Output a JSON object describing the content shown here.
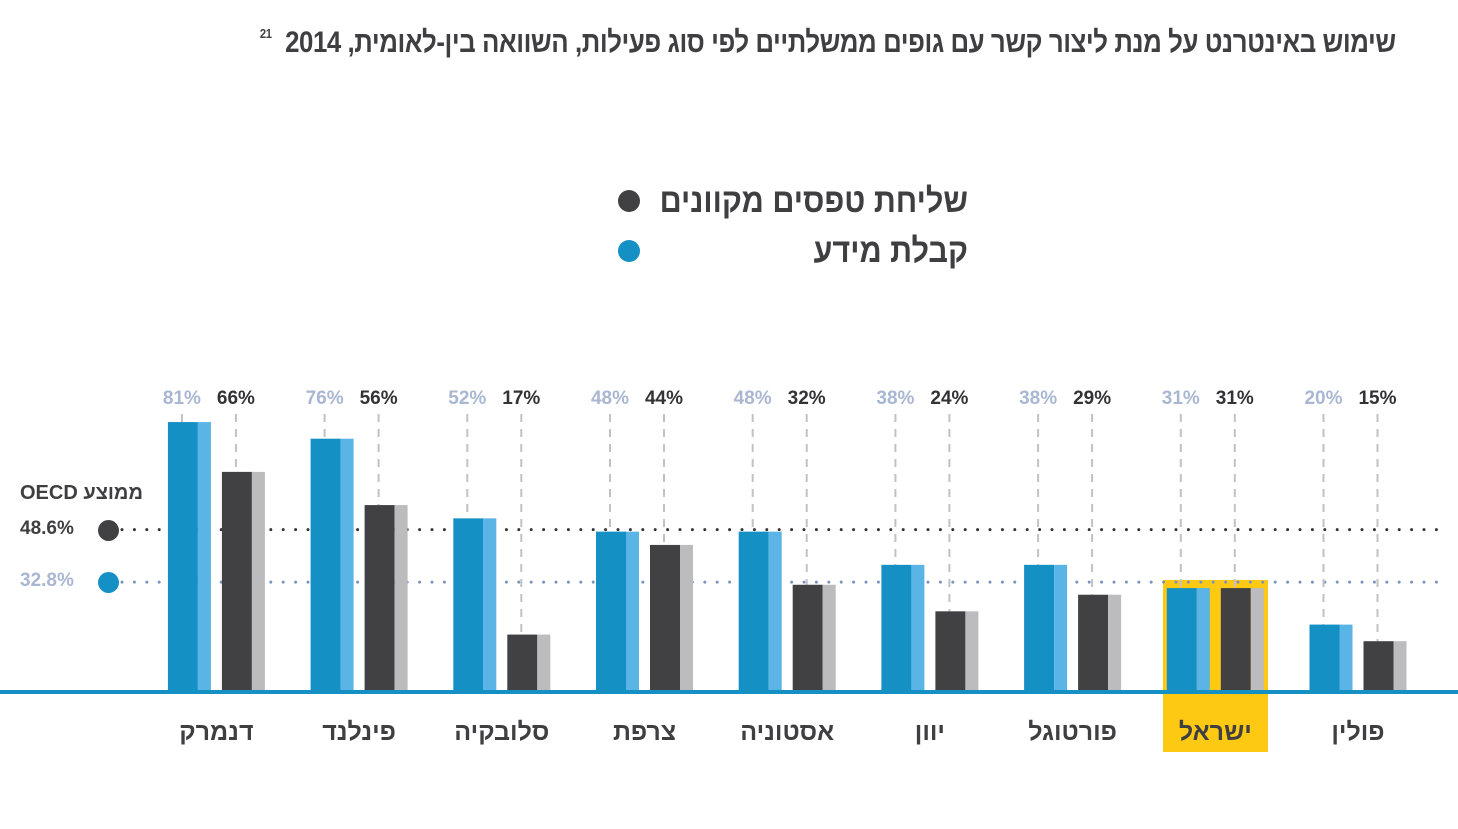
{
  "title": "שימוש באינטרנט על מנת ליצור קשר עם גופים ממשלתיים לפי סוג פעילות, השוואה בין-לאומית, 2014",
  "title_footnote": "21",
  "colors": {
    "info": "#1590c4",
    "info_light": "#5ab4e6",
    "forms": "#414143",
    "forms_light": "#bcbcbe",
    "info_label": "#a9b7d2",
    "forms_label": "#333336",
    "highlight": "#fec913",
    "baseline": "#1590c4"
  },
  "oecd": {
    "title": "ממוצע OECD",
    "forms_avg_label": "48.6%",
    "info_avg_label": "32.8%"
  },
  "chart_data": {
    "type": "bar",
    "title": "שימוש באינטרנט על מנת ליצור קשר עם גופים ממשלתיים לפי סוג פעילות, השוואה בין-לאומית, 2014",
    "xlabel": "",
    "ylabel": "",
    "ylim": [
      0,
      85
    ],
    "grid": false,
    "legend_position": "top-center",
    "categories": [
      "דנמרק",
      "פינלנד",
      "סלובקיה",
      "צרפת",
      "אסטוניה",
      "יוון",
      "פורטוגל",
      "ישראל",
      "פולין"
    ],
    "highlight_category": "ישראל",
    "series": [
      {
        "name": "קבלת מידע",
        "key": "info",
        "values": [
          81,
          76,
          52,
          48,
          48,
          38,
          38,
          31,
          20
        ],
        "labels": [
          "81%",
          "76%",
          "52%",
          "48%",
          "48%",
          "38%",
          "38%",
          "31%",
          "20%"
        ]
      },
      {
        "name": "שליחת טפסים מקוונים",
        "key": "forms",
        "values": [
          66,
          56,
          17,
          44,
          32,
          24,
          29,
          31,
          15
        ],
        "labels": [
          "66%",
          "56%",
          "17%",
          "44%",
          "32%",
          "24%",
          "29%",
          "31%",
          "15%"
        ]
      }
    ],
    "reference_lines": [
      {
        "name": "ממוצע OECD שליחת טפסים מקוונים",
        "value": 48.6,
        "label": "48.6%"
      },
      {
        "name": "ממוצע OECD קבלת מידע",
        "value": 32.8,
        "label": "32.8%"
      }
    ]
  }
}
